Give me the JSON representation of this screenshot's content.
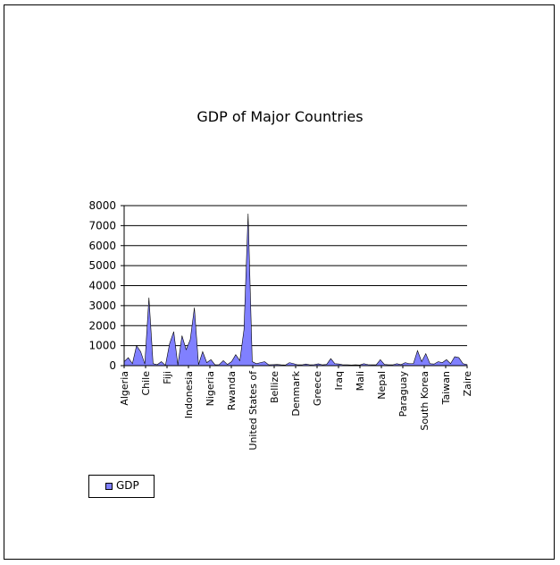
{
  "chart_data": {
    "type": "area",
    "title": "GDP of Major Countries",
    "xlabel": "",
    "ylabel": "",
    "ylim": [
      0,
      8000
    ],
    "yticks": [
      0,
      1000,
      2000,
      3000,
      4000,
      5000,
      6000,
      7000,
      8000
    ],
    "grid": true,
    "legend_position": "bottom-left",
    "colors": {
      "fill": "#8080ff",
      "stroke": "#000000",
      "grid": "#000000"
    },
    "xtick_labels": [
      "Algeria",
      "Chile",
      "Fiji",
      "Indonesia",
      "Nigeria",
      "Rwanda",
      "United States of",
      "Bellize",
      "Denmark",
      "Greece",
      "Iraq",
      "Mali",
      "Nepal",
      "Paraguay",
      "South Korea",
      "Taiwan",
      "Zaire"
    ],
    "series": [
      {
        "name": "GDP",
        "values": [
          200,
          400,
          100,
          1000,
          700,
          80,
          3400,
          100,
          50,
          200,
          20,
          1100,
          1700,
          30,
          1500,
          800,
          1300,
          2900,
          50,
          700,
          150,
          300,
          40,
          50,
          250,
          60,
          200,
          550,
          250,
          1800,
          7600,
          200,
          100,
          150,
          200,
          40,
          50,
          60,
          40,
          30,
          150,
          100,
          40,
          40,
          80,
          40,
          50,
          90,
          40,
          60,
          350,
          100,
          80,
          40,
          40,
          30,
          40,
          30,
          100,
          50,
          40,
          40,
          300,
          60,
          40,
          40,
          100,
          50,
          150,
          100,
          100,
          750,
          200,
          600,
          100,
          80,
          200,
          150,
          300,
          100,
          450,
          400,
          100,
          50
        ]
      }
    ]
  }
}
